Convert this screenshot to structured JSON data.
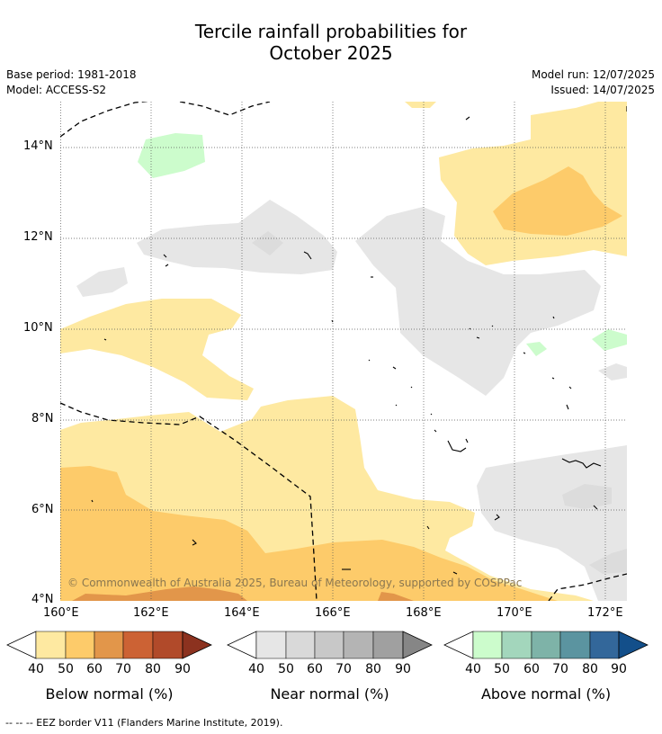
{
  "title_line1": "Tercile rainfall probabilities for",
  "title_line2": "October 2025",
  "base_period": "Base period: 1981-2018",
  "model": "Model: ACCESS-S2",
  "model_run": "Model run: 12/07/2025",
  "issued": "Issued: 14/07/2025",
  "copyright": "© Commonwealth of Australia 2025, Bureau of Meteorology, supported by COSPPac",
  "map": {
    "lon_range": [
      160,
      172.5
    ],
    "lat_range": [
      4,
      15
    ],
    "x_ticks": [
      "160°E",
      "162°E",
      "164°E",
      "166°E",
      "168°E",
      "170°E",
      "172°E"
    ],
    "y_ticks": [
      "14°N",
      "12°N",
      "10°N",
      "8°N",
      "6°N",
      "4°N"
    ]
  },
  "colorbars": [
    {
      "label": "Below normal (%)",
      "ticks": [
        "40",
        "50",
        "60",
        "70",
        "80",
        "90"
      ],
      "colors": [
        "#fee9a1",
        "#fdcb6a",
        "#e2964a",
        "#cc6234",
        "#b14a2a",
        "#8c321f"
      ]
    },
    {
      "label": "Near normal (%)",
      "ticks": [
        "40",
        "50",
        "60",
        "70",
        "80",
        "90"
      ],
      "colors": [
        "#e6e6e6",
        "#d9d9d9",
        "#c8c8c8",
        "#b4b4b4",
        "#a0a0a0",
        "#868686"
      ]
    },
    {
      "label": "Above normal (%)",
      "ticks": [
        "40",
        "50",
        "60",
        "70",
        "80",
        "90"
      ],
      "colors": [
        "#ccfccc",
        "#a3d6bc",
        "#7eb3a8",
        "#5b94a0",
        "#33679a",
        "#134f8a"
      ]
    }
  ],
  "footnote": "--  --  -- EEZ border V11 (Flanders Marine Institute, 2019)."
}
